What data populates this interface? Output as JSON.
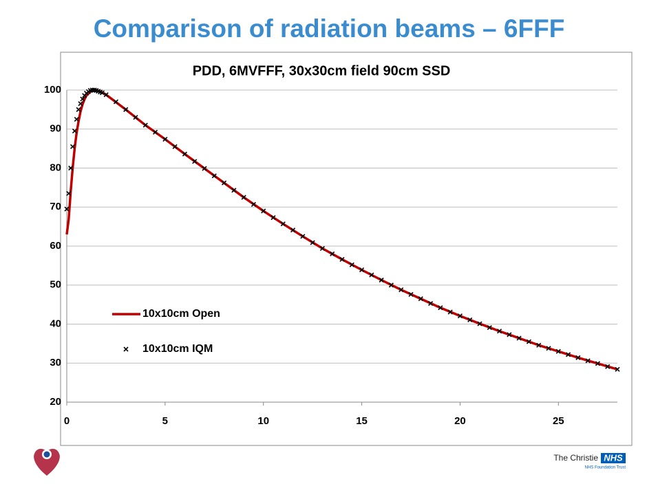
{
  "slide_title": "Comparison of radiation beams – 6FFF",
  "footer": {
    "organization": "The Christie",
    "nhs": "NHS",
    "trust": "NHS Foundation Trust"
  },
  "chart_data": {
    "type": "line",
    "title": "PDD, 6MVFFF, 30x30cm field 90cm SSD",
    "xlim": [
      0,
      28
    ],
    "xticks": [
      0,
      5,
      10,
      15,
      20,
      25
    ],
    "ylim": [
      20,
      100
    ],
    "yticks": [
      20,
      30,
      40,
      50,
      60,
      70,
      80,
      90,
      100
    ],
    "grid": true,
    "legend": "lower left",
    "series": [
      {
        "name": "10x10cm Open",
        "type": "line",
        "color": "#c00000",
        "x": [
          0,
          0.1,
          0.2,
          0.3,
          0.4,
          0.5,
          0.6,
          0.7,
          0.8,
          0.9,
          1.0,
          1.2,
          1.4,
          1.6,
          1.8,
          2,
          3,
          4,
          5,
          6,
          7,
          8,
          9,
          10,
          11,
          12,
          13,
          14,
          15,
          16,
          17,
          18,
          19,
          20,
          21,
          22,
          23,
          24,
          25,
          26,
          27,
          28
        ],
        "values": [
          63,
          67,
          74,
          80,
          85,
          89,
          92,
          94.5,
          96.3,
          97.6,
          98.6,
          99.6,
          100,
          99.8,
          99.4,
          98.8,
          95,
          91,
          87.4,
          83.6,
          79.9,
          76.2,
          72.5,
          69,
          65.7,
          62.5,
          59.4,
          56.6,
          53.9,
          51.3,
          48.8,
          46.5,
          44.2,
          42.1,
          40.1,
          38.2,
          36.4,
          34.6,
          33,
          31.4,
          29.9,
          28.4
        ]
      },
      {
        "name": "10x10cm IQM",
        "type": "scatter",
        "color": "#000000",
        "x": [
          0,
          0.1,
          0.2,
          0.3,
          0.4,
          0.5,
          0.6,
          0.7,
          0.8,
          0.9,
          1.0,
          1.1,
          1.2,
          1.3,
          1.4,
          1.5,
          1.6,
          1.7,
          1.8,
          2.0,
          2.5,
          3,
          3.5,
          4,
          4.5,
          5,
          5.5,
          6,
          6.5,
          7,
          7.5,
          8,
          8.5,
          9,
          9.5,
          10,
          10.5,
          11,
          11.5,
          12,
          12.5,
          13,
          13.5,
          14,
          14.5,
          15,
          15.5,
          16,
          16.5,
          17,
          17.5,
          18,
          18.5,
          19,
          19.5,
          20,
          20.5,
          21,
          21.5,
          22,
          22.5,
          23,
          23.5,
          24,
          24.5,
          25,
          25.5,
          26,
          26.5,
          27,
          27.5,
          28
        ],
        "values": [
          69.5,
          73.5,
          80,
          85.5,
          89.5,
          92.5,
          95,
          96.5,
          97.7,
          98.6,
          99.2,
          99.6,
          99.9,
          100,
          100,
          99.9,
          99.7,
          99.5,
          99.3,
          98.8,
          97,
          95,
          93,
          91,
          89.2,
          87.4,
          85.5,
          83.6,
          81.7,
          79.9,
          78,
          76.2,
          74.3,
          72.5,
          70.7,
          69,
          67.3,
          65.7,
          64.1,
          62.5,
          60.9,
          59.4,
          58,
          56.6,
          55.2,
          53.9,
          52.6,
          51.3,
          50,
          48.8,
          47.6,
          46.5,
          45.3,
          44.2,
          43.1,
          42.1,
          41.1,
          40.1,
          39.1,
          38.2,
          37.3,
          36.4,
          35.5,
          34.6,
          33.8,
          33,
          32.2,
          31.4,
          30.6,
          29.9,
          29.1,
          28.4
        ]
      }
    ]
  }
}
